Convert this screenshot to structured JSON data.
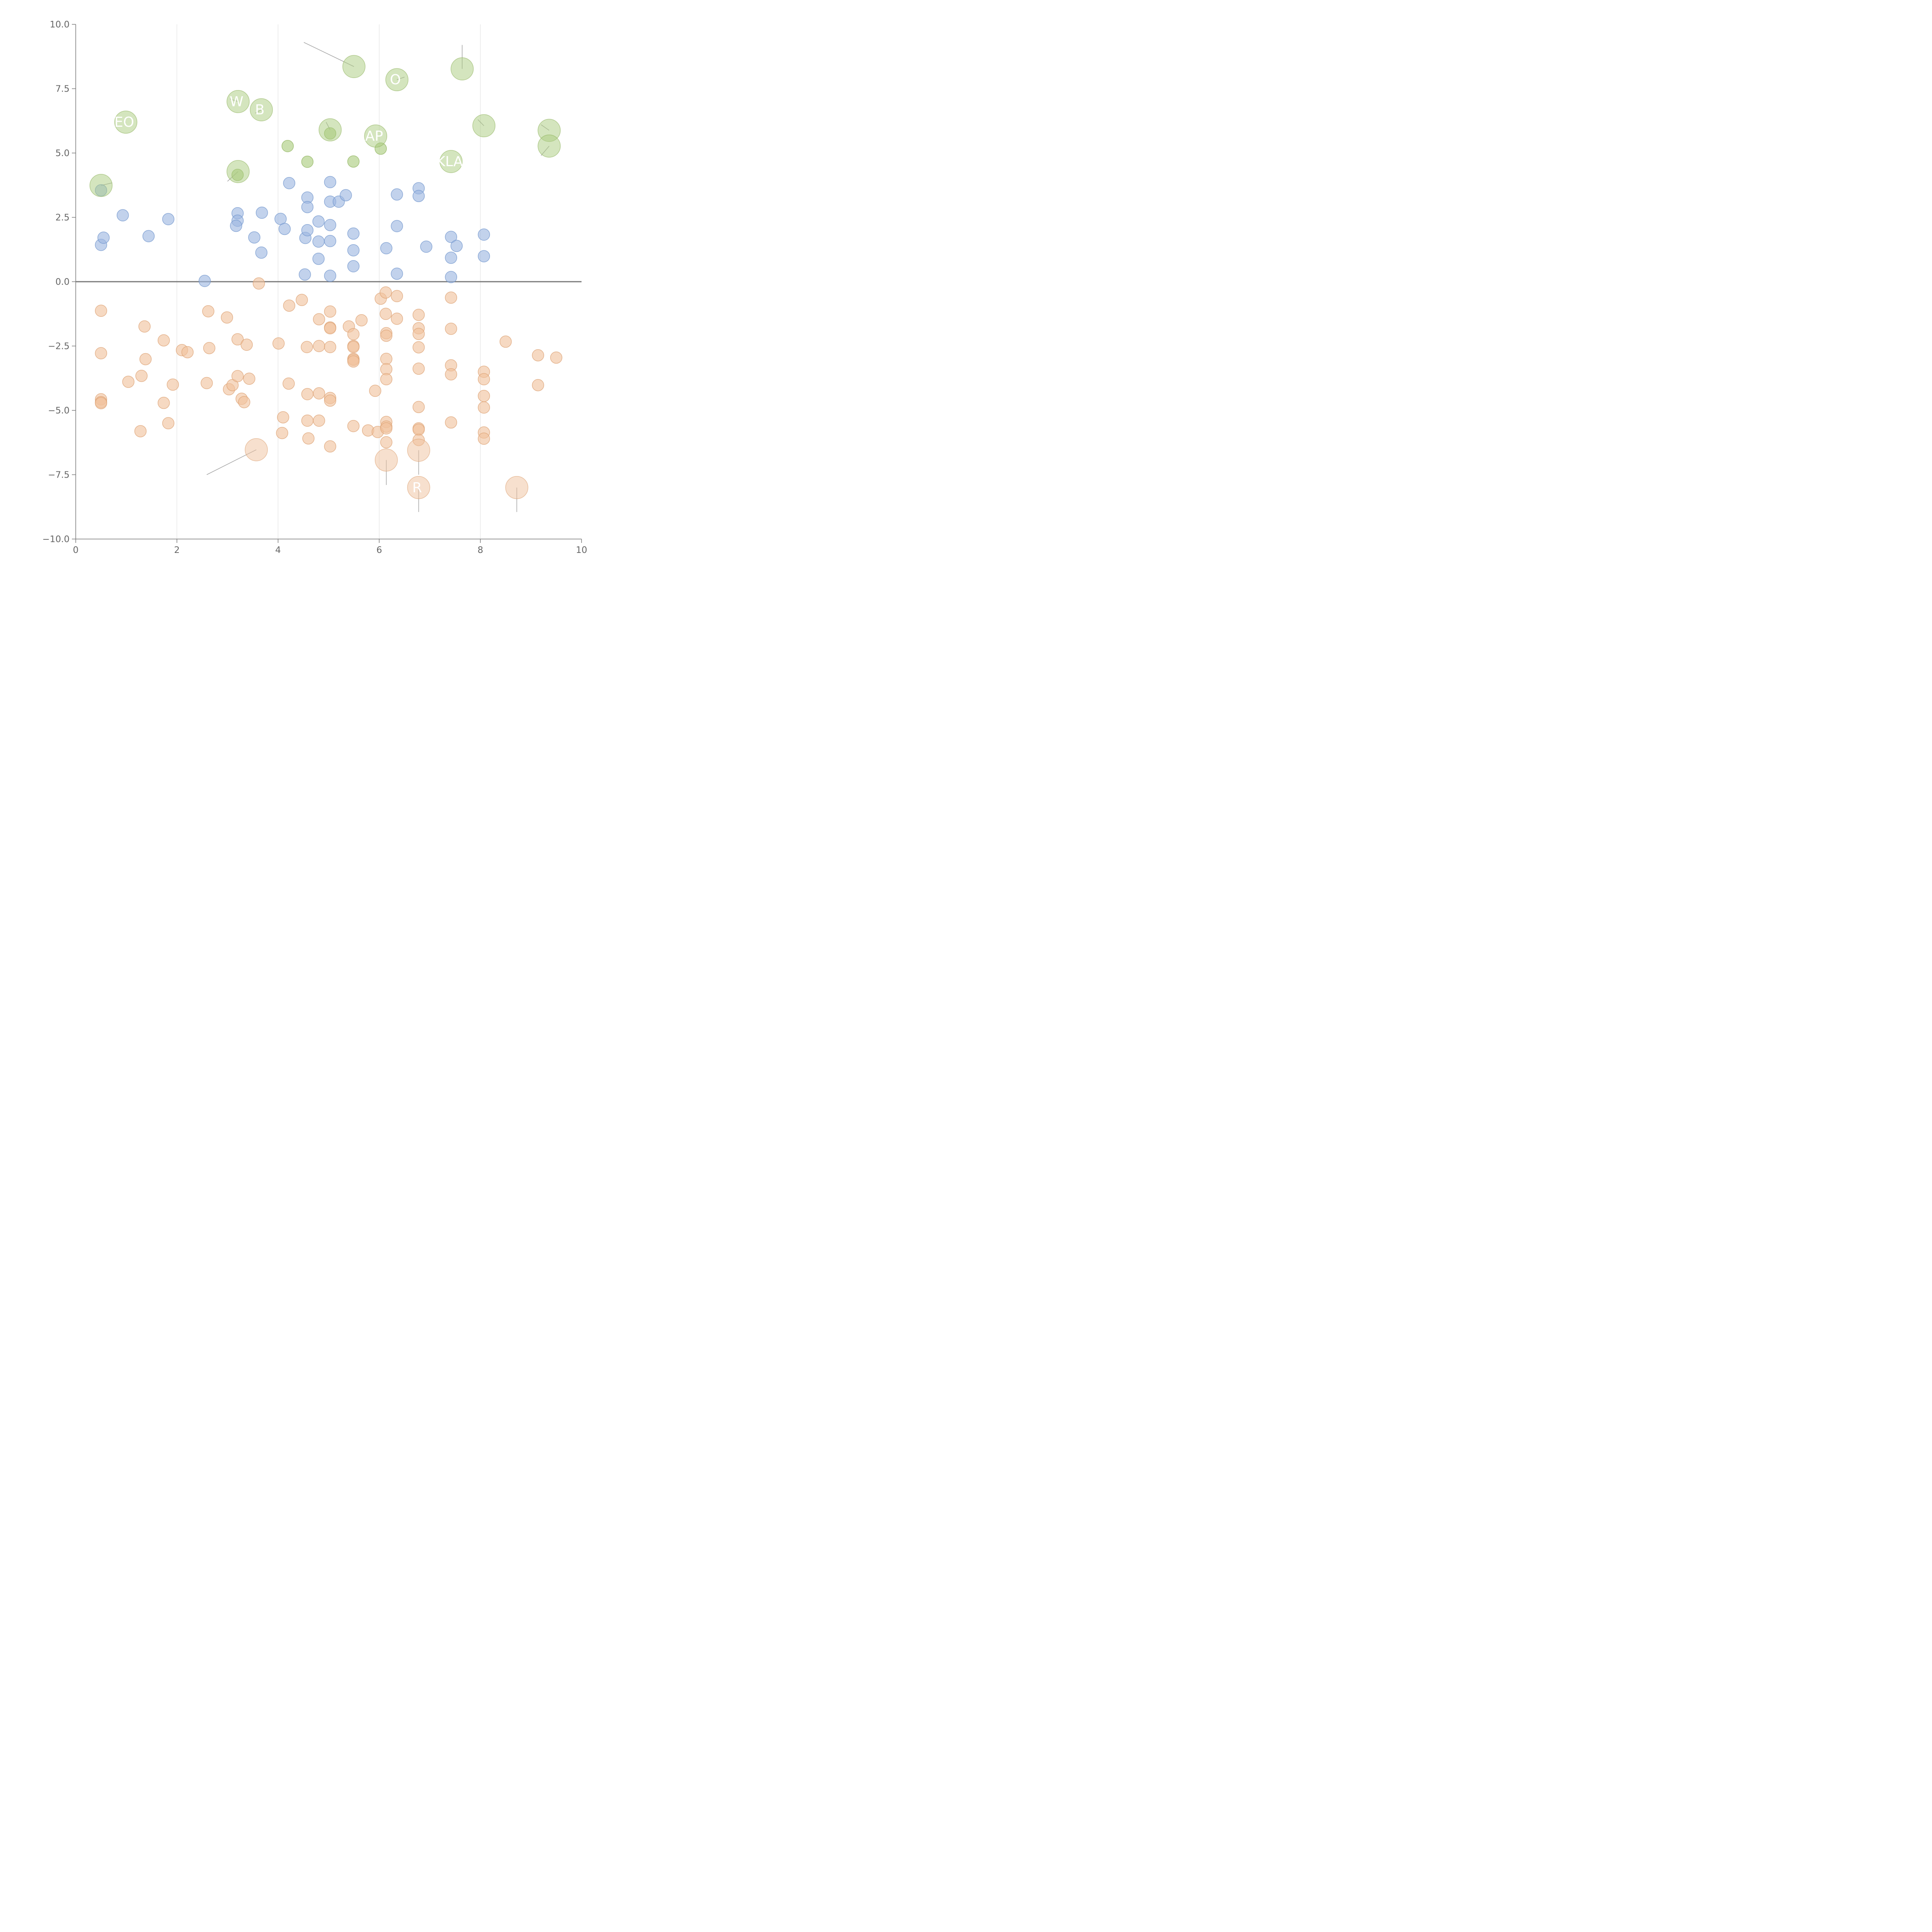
{
  "chart_data": {
    "type": "scatter",
    "title": "",
    "xlabel": "",
    "ylabel": "",
    "xlim": [
      0,
      10
    ],
    "ylim": [
      -10,
      10
    ],
    "x_ticks": [
      0,
      2,
      4,
      6,
      8,
      10
    ],
    "x_tick_labels": [
      "0",
      "2",
      "4",
      "6",
      "8",
      "10"
    ],
    "y_ticks": [
      10,
      7.5,
      5,
      2.5,
      0,
      -2.5,
      -5,
      -7.5,
      -10
    ],
    "y_tick_labels": [
      "10.0",
      "7.5",
      "5.0",
      "2.5",
      "0.0",
      "−2.5",
      "−5.0",
      "−7.5",
      "−10.0"
    ],
    "grid": "vertical lines at x ticks",
    "zero_line": true,
    "legend": "none",
    "series": [
      {
        "color": "#9db7e0",
        "stroke": "#6f94cc",
        "points": [
          [
            0.5,
            3.55
          ],
          [
            0.5,
            1.43
          ],
          [
            0.55,
            1.71
          ],
          [
            0.93,
            2.58
          ],
          [
            1.44,
            1.77
          ],
          [
            1.83,
            2.43
          ],
          [
            2.55,
            0.03
          ],
          [
            3.2,
            2.66
          ],
          [
            3.2,
            2.37
          ],
          [
            3.17,
            2.17
          ],
          [
            3.53,
            1.72
          ],
          [
            3.68,
            2.68
          ],
          [
            3.67,
            1.13
          ],
          [
            4.05,
            2.44
          ],
          [
            4.13,
            2.05
          ],
          [
            4.22,
            3.83
          ],
          [
            4.53,
            0.28
          ],
          [
            4.54,
            1.7
          ],
          [
            4.58,
            3.27
          ],
          [
            4.58,
            2.9
          ],
          [
            4.58,
            2.0
          ],
          [
            4.8,
            2.34
          ],
          [
            4.8,
            1.56
          ],
          [
            4.8,
            0.89
          ],
          [
            5.03,
            3.87
          ],
          [
            5.03,
            3.11
          ],
          [
            5.03,
            2.2
          ],
          [
            5.03,
            1.58
          ],
          [
            5.03,
            0.23
          ],
          [
            5.2,
            3.11
          ],
          [
            5.34,
            3.36
          ],
          [
            5.49,
            1.87
          ],
          [
            5.49,
            1.22
          ],
          [
            5.49,
            0.6
          ],
          [
            6.14,
            1.3
          ],
          [
            6.35,
            3.39
          ],
          [
            6.35,
            2.16
          ],
          [
            6.35,
            0.31
          ],
          [
            6.78,
            3.63
          ],
          [
            6.78,
            3.33
          ],
          [
            6.93,
            1.36
          ],
          [
            7.42,
            1.74
          ],
          [
            7.42,
            0.93
          ],
          [
            7.42,
            0.18
          ],
          [
            7.53,
            1.39
          ],
          [
            8.07,
            1.83
          ],
          [
            8.07,
            0.99
          ]
        ]
      },
      {
        "color": "#f0c29d",
        "stroke": "#dca072",
        "points": [
          [
            0.5,
            -1.13
          ],
          [
            0.5,
            -2.78
          ],
          [
            0.5,
            -4.57
          ],
          [
            0.5,
            -4.68
          ],
          [
            0.5,
            -4.72
          ],
          [
            1.04,
            -3.89
          ],
          [
            1.3,
            -3.66
          ],
          [
            1.36,
            -1.74
          ],
          [
            1.38,
            -3.01
          ],
          [
            1.28,
            -5.81
          ],
          [
            1.74,
            -2.28
          ],
          [
            1.74,
            -4.71
          ],
          [
            1.83,
            -5.5
          ],
          [
            1.92,
            -4.0
          ],
          [
            2.1,
            -2.66
          ],
          [
            2.21,
            -2.74
          ],
          [
            2.59,
            -3.94
          ],
          [
            2.62,
            -1.15
          ],
          [
            2.64,
            -2.58
          ],
          [
            2.99,
            -1.39
          ],
          [
            3.03,
            -4.18
          ],
          [
            3.1,
            -4.02
          ],
          [
            3.2,
            -2.24
          ],
          [
            3.2,
            -3.67
          ],
          [
            3.28,
            -4.55
          ],
          [
            3.33,
            -4.68
          ],
          [
            3.38,
            -2.45
          ],
          [
            3.43,
            -3.77
          ],
          [
            3.62,
            -0.07
          ],
          [
            4.01,
            -2.4
          ],
          [
            4.08,
            -5.88
          ],
          [
            4.1,
            -5.27
          ],
          [
            4.21,
            -3.96
          ],
          [
            4.22,
            -0.93
          ],
          [
            4.47,
            -0.71
          ],
          [
            4.57,
            -2.54
          ],
          [
            4.58,
            -4.37
          ],
          [
            4.58,
            -5.4
          ],
          [
            4.6,
            -6.09
          ],
          [
            4.81,
            -1.46
          ],
          [
            4.81,
            -2.5
          ],
          [
            4.81,
            -4.34
          ],
          [
            4.81,
            -5.4
          ],
          [
            5.03,
            -1.16
          ],
          [
            5.03,
            -1.78
          ],
          [
            5.03,
            -1.81
          ],
          [
            5.03,
            -2.54
          ],
          [
            5.03,
            -4.52
          ],
          [
            5.03,
            -4.62
          ],
          [
            5.03,
            -6.4
          ],
          [
            5.4,
            -1.74
          ],
          [
            5.49,
            -2.04
          ],
          [
            5.49,
            -2.5
          ],
          [
            5.49,
            -2.54
          ],
          [
            5.49,
            -3.0
          ],
          [
            5.49,
            -3.04
          ],
          [
            5.49,
            -3.1
          ],
          [
            5.49,
            -5.61
          ],
          [
            5.65,
            -1.5
          ],
          [
            5.78,
            -5.78
          ],
          [
            5.92,
            -4.24
          ],
          [
            5.97,
            -5.84
          ],
          [
            6.03,
            -0.66
          ],
          [
            6.13,
            -0.42
          ],
          [
            6.13,
            -1.25
          ],
          [
            6.14,
            -2.0
          ],
          [
            6.14,
            -2.1
          ],
          [
            6.14,
            -3.0
          ],
          [
            6.14,
            -3.4
          ],
          [
            6.14,
            -3.79
          ],
          [
            6.14,
            -5.45
          ],
          [
            6.14,
            -5.63
          ],
          [
            6.14,
            -5.7
          ],
          [
            6.14,
            -6.24
          ],
          [
            6.35,
            -0.56
          ],
          [
            6.35,
            -1.44
          ],
          [
            6.78,
            -1.29
          ],
          [
            6.78,
            -1.81
          ],
          [
            6.78,
            -2.03
          ],
          [
            6.78,
            -2.55
          ],
          [
            6.78,
            -3.38
          ],
          [
            6.78,
            -4.87
          ],
          [
            6.78,
            -5.7
          ],
          [
            6.78,
            -5.75
          ],
          [
            6.78,
            -6.15
          ],
          [
            7.42,
            -0.62
          ],
          [
            7.42,
            -1.83
          ],
          [
            7.42,
            -3.25
          ],
          [
            7.42,
            -3.6
          ],
          [
            7.42,
            -5.47
          ],
          [
            8.07,
            -3.5
          ],
          [
            8.07,
            -3.79
          ],
          [
            8.07,
            -4.44
          ],
          [
            8.07,
            -4.89
          ],
          [
            8.07,
            -5.86
          ],
          [
            8.07,
            -6.1
          ],
          [
            8.5,
            -2.33
          ],
          [
            9.14,
            -2.86
          ],
          [
            9.14,
            -4.02
          ],
          [
            9.5,
            -2.95
          ]
        ]
      },
      {
        "color": "#a9cb7d",
        "stroke": "#8fb35e",
        "points": [
          [
            4.19,
            5.27
          ],
          [
            4.58,
            4.66
          ],
          [
            5.03,
            5.76
          ],
          [
            5.49,
            4.67
          ],
          [
            6.03,
            5.17
          ],
          [
            3.2,
            4.15
          ]
        ]
      }
    ],
    "highlighted": [
      {
        "x": 0.99,
        "y": 6.2,
        "color": "#a9cb7d",
        "stroke": "#8fb35e",
        "label": "EO",
        "leader": [
          0.99,
          6.2,
          0.98,
          6.2
        ]
      },
      {
        "x": 0.5,
        "y": 3.74,
        "color": "#a9cb7d",
        "stroke": "#8fb35e",
        "label": "",
        "leader": [
          0.5,
          3.74,
          0.72,
          3.84
        ]
      },
      {
        "x": 3.21,
        "y": 7.0,
        "color": "#a9cb7d",
        "stroke": "#8fb35e",
        "label": "W",
        "leader": [
          3.21,
          7.0,
          3.05,
          7.1
        ]
      },
      {
        "x": 3.67,
        "y": 6.68,
        "color": "#a9cb7d",
        "stroke": "#8fb35e",
        "label": "B",
        "leader": [
          3.67,
          6.68,
          3.55,
          6.55
        ]
      },
      {
        "x": 3.21,
        "y": 4.28,
        "color": "#a9cb7d",
        "stroke": "#8fb35e",
        "label": "",
        "leader": [
          3.21,
          4.28,
          3.0,
          3.9
        ]
      },
      {
        "x": 5.5,
        "y": 8.36,
        "color": "#a9cb7d",
        "stroke": "#8fb35e",
        "label": "",
        "leader": [
          5.5,
          8.36,
          4.51,
          9.3
        ]
      },
      {
        "x": 5.03,
        "y": 5.9,
        "color": "#a9cb7d",
        "stroke": "#8fb35e",
        "label": "",
        "leader": [
          5.03,
          5.9,
          4.95,
          6.2
        ]
      },
      {
        "x": 5.93,
        "y": 5.66,
        "color": "#a9cb7d",
        "stroke": "#8fb35e",
        "label": "AP",
        "leader": [
          5.93,
          5.66,
          5.93,
          5.66
        ]
      },
      {
        "x": 6.35,
        "y": 7.85,
        "color": "#a9cb7d",
        "stroke": "#8fb35e",
        "label": "O",
        "leader": [
          6.35,
          7.85,
          6.5,
          7.95
        ]
      },
      {
        "x": 7.64,
        "y": 8.27,
        "color": "#a9cb7d",
        "stroke": "#8fb35e",
        "label": "",
        "leader": [
          7.64,
          8.27,
          7.64,
          9.2
        ]
      },
      {
        "x": 7.42,
        "y": 4.67,
        "color": "#a9cb7d",
        "stroke": "#8fb35e",
        "label": "KLA",
        "leader": [
          7.42,
          4.67,
          7.42,
          4.67
        ]
      },
      {
        "x": 8.07,
        "y": 6.06,
        "color": "#a9cb7d",
        "stroke": "#8fb35e",
        "label": "",
        "leader": [
          8.07,
          6.06,
          7.95,
          6.3
        ]
      },
      {
        "x": 9.36,
        "y": 5.88,
        "color": "#a9cb7d",
        "stroke": "#8fb35e",
        "label": "",
        "leader": [
          9.36,
          5.88,
          9.2,
          6.1
        ]
      },
      {
        "x": 9.36,
        "y": 5.27,
        "color": "#a9cb7d",
        "stroke": "#8fb35e",
        "label": "",
        "leader": [
          9.36,
          5.27,
          9.2,
          4.9
        ]
      },
      {
        "x": 3.57,
        "y": -6.53,
        "color": "#f0c29d",
        "stroke": "#dca072",
        "label": "",
        "leader": [
          3.57,
          -6.53,
          2.59,
          -7.5
        ]
      },
      {
        "x": 6.14,
        "y": -6.93,
        "color": "#f0c29d",
        "stroke": "#dca072",
        "label": "",
        "leader": [
          6.14,
          -6.93,
          6.14,
          -7.9
        ]
      },
      {
        "x": 6.78,
        "y": -6.55,
        "color": "#f0c29d",
        "stroke": "#dca072",
        "label": "",
        "leader": [
          6.78,
          -6.55,
          6.78,
          -7.5
        ]
      },
      {
        "x": 6.78,
        "y": -8.0,
        "color": "#f0c29d",
        "stroke": "#dca072",
        "label": "R",
        "leader": [
          6.78,
          -8.0,
          6.78,
          -8.95
        ]
      },
      {
        "x": 8.72,
        "y": -8.0,
        "color": "#f0c29d",
        "stroke": "#dca072",
        "label": "",
        "leader": [
          8.72,
          -8.0,
          8.72,
          -8.95
        ]
      }
    ]
  }
}
